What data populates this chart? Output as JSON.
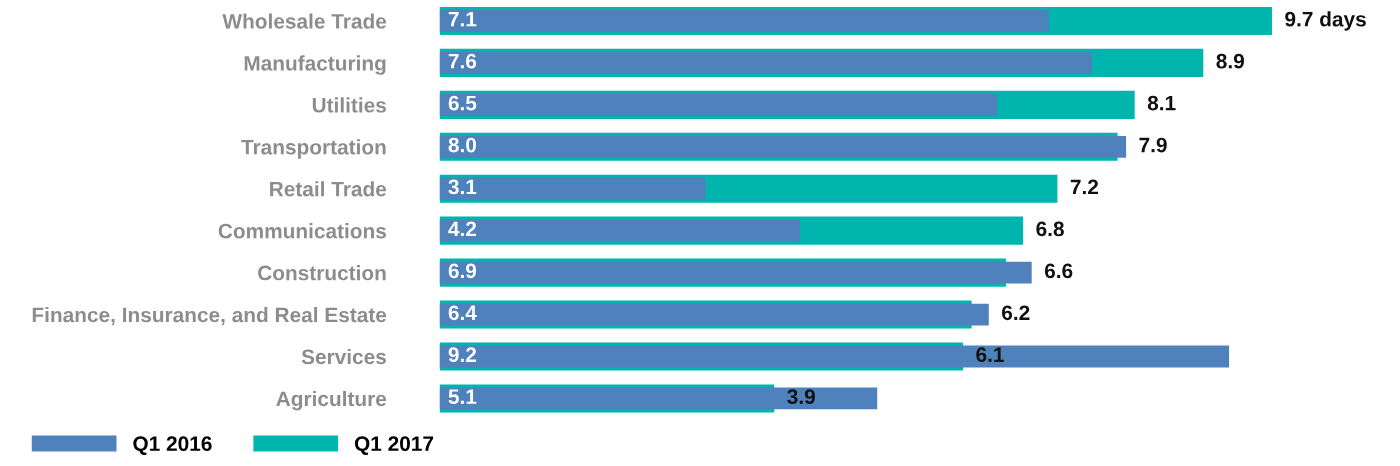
{
  "chart_data": {
    "type": "bar",
    "orientation": "horizontal",
    "legend": "bottom left",
    "grid": false,
    "tick_labels": "y",
    "categories": [
      "Wholesale Trade",
      "Manufacturing",
      "Utilities",
      "Transportation",
      "Retail Trade",
      "Communications",
      "Construction",
      "Finance, Insurance, and Real Estate",
      "Services",
      "Agriculture"
    ],
    "series": [
      {
        "name": "Q1 2017",
        "color": "#00b5ad",
        "values": [
          9.7,
          8.9,
          8.1,
          7.9,
          7.2,
          6.8,
          6.6,
          6.2,
          6.1,
          3.9
        ],
        "value_labels": [
          "9.7 days",
          "8.9",
          "8.1",
          "7.9",
          "7.2",
          "6.8",
          "6.6",
          "6.2",
          "6.1",
          "3.9"
        ]
      },
      {
        "name": "Q1 2016",
        "color": "#4f81bd",
        "values": [
          7.1,
          7.6,
          6.5,
          8.0,
          3.1,
          4.2,
          6.9,
          6.4,
          9.2,
          5.1
        ],
        "value_labels": [
          "7.1",
          "7.6",
          "6.5",
          "8.0",
          "3.1",
          "4.2",
          "6.9",
          "6.4",
          "9.2",
          "5.1"
        ]
      }
    ]
  }
}
